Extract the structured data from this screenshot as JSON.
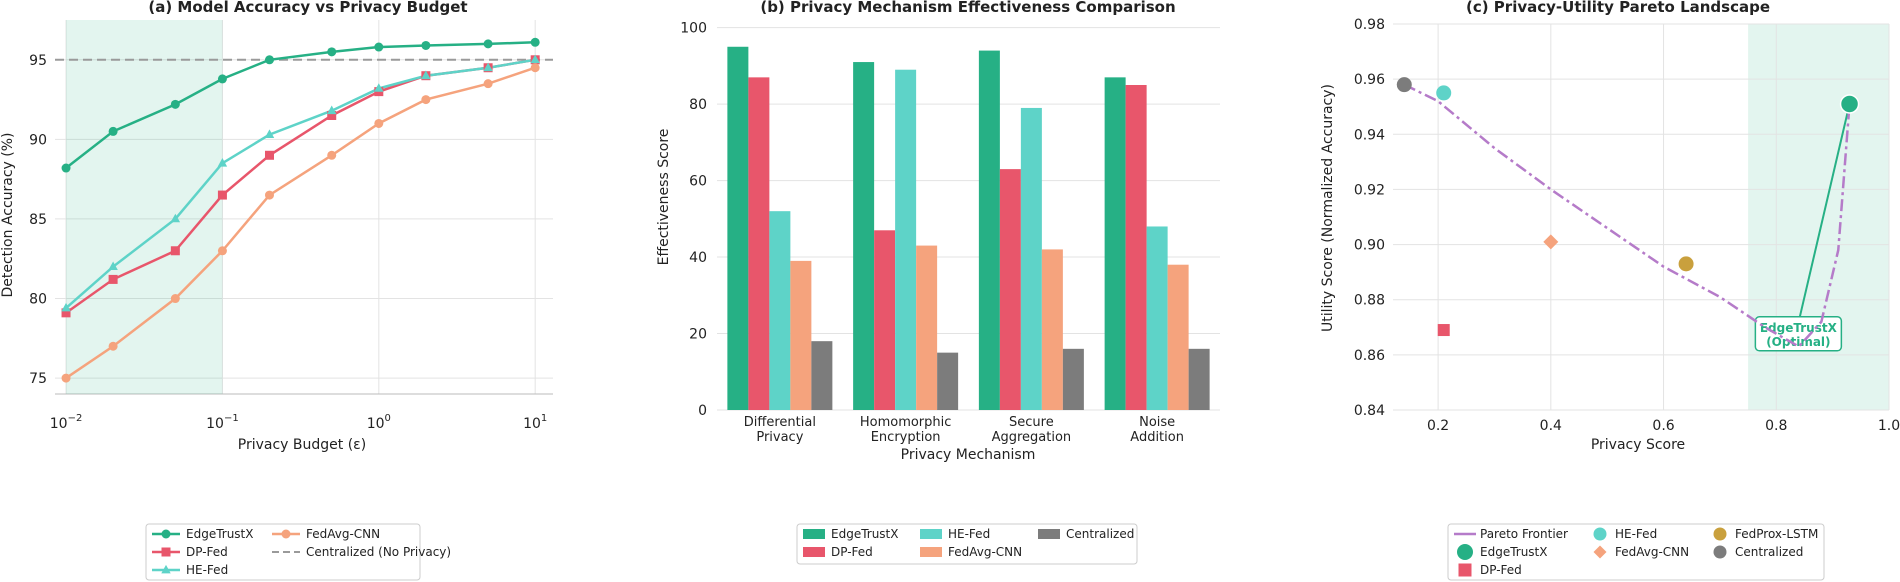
{
  "chart_data": [
    {
      "type": "line",
      "title": "(a) Model Accuracy vs Privacy Budget",
      "xlabel": "Privacy Budget (ε)",
      "ylabel": "Detection Accuracy (%)",
      "xscale": "log",
      "xlim": [
        0.0085,
        13
      ],
      "ylim": [
        74,
        97.5
      ],
      "yticks": [
        75,
        80,
        85,
        90,
        95
      ],
      "xtick_labels": [
        {
          "value": 0.01,
          "base": "10",
          "exp": "−2"
        },
        {
          "value": 0.1,
          "base": "10",
          "exp": "−1"
        },
        {
          "value": 1,
          "base": "10",
          "exp": "0"
        },
        {
          "value": 10,
          "base": "10",
          "exp": "1"
        }
      ],
      "shaded_x": [
        0.01,
        0.1
      ],
      "reference": {
        "name": "Centralized (No Privacy)",
        "y": 95,
        "color": "#9a9a9a"
      },
      "x": [
        0.01,
        0.02,
        0.05,
        0.1,
        0.2,
        0.5,
        1,
        2,
        5,
        10
      ],
      "series": [
        {
          "name": "EdgeTrustX",
          "color": "#26b085",
          "marker": "circle",
          "values": [
            88.2,
            90.5,
            92.2,
            93.8,
            95.0,
            95.5,
            95.8,
            95.9,
            96.0,
            96.1
          ]
        },
        {
          "name": "DP-Fed",
          "color": "#e8566b",
          "marker": "square",
          "values": [
            79.1,
            81.2,
            83.0,
            86.5,
            89.0,
            91.5,
            93.0,
            94.0,
            94.5,
            95.0
          ]
        },
        {
          "name": "HE-Fed",
          "color": "#5ed3c8",
          "marker": "triangle",
          "values": [
            79.4,
            82.0,
            85.0,
            88.5,
            90.3,
            91.8,
            93.2,
            94.0,
            94.5,
            95.0
          ]
        },
        {
          "name": "FedAvg-CNN",
          "color": "#f5a37d",
          "marker": "circle",
          "values": [
            75.0,
            77.0,
            80.0,
            83.0,
            86.5,
            89.0,
            91.0,
            92.5,
            93.5,
            94.5
          ]
        }
      ],
      "legend": [
        "EdgeTrustX",
        "DP-Fed",
        "HE-Fed",
        "FedAvg-CNN",
        "Centralized (No Privacy)"
      ]
    },
    {
      "type": "bar",
      "title": "(b) Privacy Mechanism Effectiveness Comparison",
      "xlabel": "Privacy Mechanism",
      "ylabel": "Effectiveness Score",
      "ylim": [
        0,
        102
      ],
      "yticks": [
        0,
        20,
        40,
        60,
        80,
        100
      ],
      "categories": [
        [
          "Differential",
          "Privacy"
        ],
        [
          "Homomorphic",
          "Encryption"
        ],
        [
          "Secure",
          "Aggregation"
        ],
        [
          "Noise",
          "Addition"
        ]
      ],
      "series": [
        {
          "name": "EdgeTrustX",
          "color": "#26b085",
          "values": [
            95,
            91,
            94,
            87
          ]
        },
        {
          "name": "DP-Fed",
          "color": "#e8566b",
          "values": [
            87,
            47,
            63,
            85
          ]
        },
        {
          "name": "HE-Fed",
          "color": "#5ed3c8",
          "values": [
            52,
            89,
            79,
            48
          ]
        },
        {
          "name": "FedAvg-CNN",
          "color": "#f5a37d",
          "values": [
            39,
            43,
            42,
            38
          ]
        },
        {
          "name": "Centralized",
          "color": "#7c7c7c",
          "values": [
            18,
            15,
            16,
            16
          ]
        }
      ]
    },
    {
      "type": "scatter",
      "title": "(c) Privacy-Utility Pareto Landscape",
      "xlabel": "Privacy Score",
      "ylabel": "Utility Score (Normalized Accuracy)",
      "xlim": [
        0.12,
        1.0
      ],
      "ylim": [
        0.84,
        0.98
      ],
      "xticks": [
        0.2,
        0.4,
        0.6,
        0.8,
        1.0
      ],
      "xtick_labels": [
        "0.2",
        "0.4",
        "0.6",
        "0.8",
        "1.0"
      ],
      "yticks": [
        0.84,
        0.86,
        0.88,
        0.9,
        0.92,
        0.94,
        0.96,
        0.98
      ],
      "ytick_labels": [
        "0.84",
        "0.86",
        "0.88",
        "0.90",
        "0.92",
        "0.94",
        "0.96",
        "0.98"
      ],
      "shaded_x": [
        0.75,
        1.0
      ],
      "points": [
        {
          "name": "EdgeTrustX",
          "x": 0.93,
          "y": 0.951,
          "color": "#26b085",
          "marker": "circle",
          "size": "large"
        },
        {
          "name": "DP-Fed",
          "x": 0.21,
          "y": 0.869,
          "color": "#e8566b",
          "marker": "square",
          "size": "small"
        },
        {
          "name": "HE-Fed",
          "x": 0.21,
          "y": 0.955,
          "color": "#5ed3c8",
          "marker": "circle",
          "size": "medium"
        },
        {
          "name": "FedAvg-CNN",
          "x": 0.4,
          "y": 0.901,
          "color": "#f5a37d",
          "marker": "diamond",
          "size": "medium"
        },
        {
          "name": "FedProx-LSTM",
          "x": 0.64,
          "y": 0.893,
          "color": "#c9a03d",
          "marker": "circle",
          "size": "medium"
        },
        {
          "name": "Centralized",
          "x": 0.14,
          "y": 0.958,
          "color": "#7c7c7c",
          "marker": "circle",
          "size": "medium"
        }
      ],
      "pareto": {
        "name": "Pareto Frontier",
        "color": "#b57bc9",
        "x": [
          0.14,
          0.2,
          0.3,
          0.4,
          0.5,
          0.6,
          0.7,
          0.78,
          0.84,
          0.88,
          0.91,
          0.93
        ],
        "y": [
          0.958,
          0.952,
          0.935,
          0.92,
          0.906,
          0.892,
          0.881,
          0.87,
          0.863,
          0.872,
          0.898,
          0.951
        ]
      },
      "annotation": {
        "text": [
          "EdgeTrustX",
          "(Optimal)"
        ],
        "color": "#26b085",
        "x_text": 0.77,
        "y_text": 0.868,
        "x_arrow": 0.93,
        "y_arrow": 0.951
      },
      "legend": [
        "Pareto Frontier",
        "EdgeTrustX",
        "DP-Fed",
        "HE-Fed",
        "FedAvg-CNN",
        "FedProx-LSTM",
        "Centralized"
      ]
    }
  ]
}
